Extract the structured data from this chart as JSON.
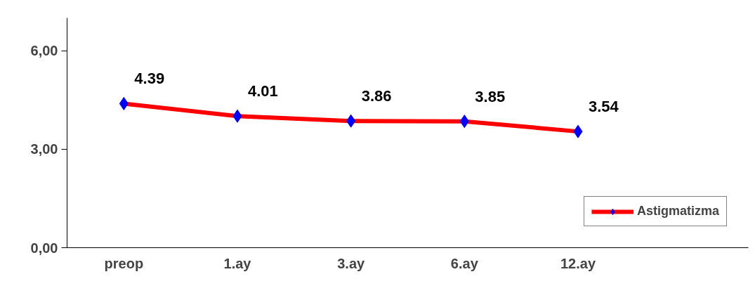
{
  "chart_data": {
    "type": "line",
    "categories": [
      "preop",
      "1.ay",
      "3.ay",
      "6.ay",
      "12.ay",
      null
    ],
    "series": [
      {
        "name": "Astigmatizma",
        "color": "#ff0000",
        "values": [
          4.39,
          4.01,
          3.86,
          3.85,
          3.54,
          null
        ]
      }
    ],
    "ylim": [
      0,
      7
    ],
    "yticks": [
      {
        "value": 0,
        "label": "0,00"
      },
      {
        "value": 3,
        "label": "3,00"
      },
      {
        "value": 6,
        "label": "6,00"
      }
    ],
    "grid": false,
    "legend": "bottom right",
    "marker": "diamond",
    "line_style": "solid",
    "data_labels": true
  }
}
